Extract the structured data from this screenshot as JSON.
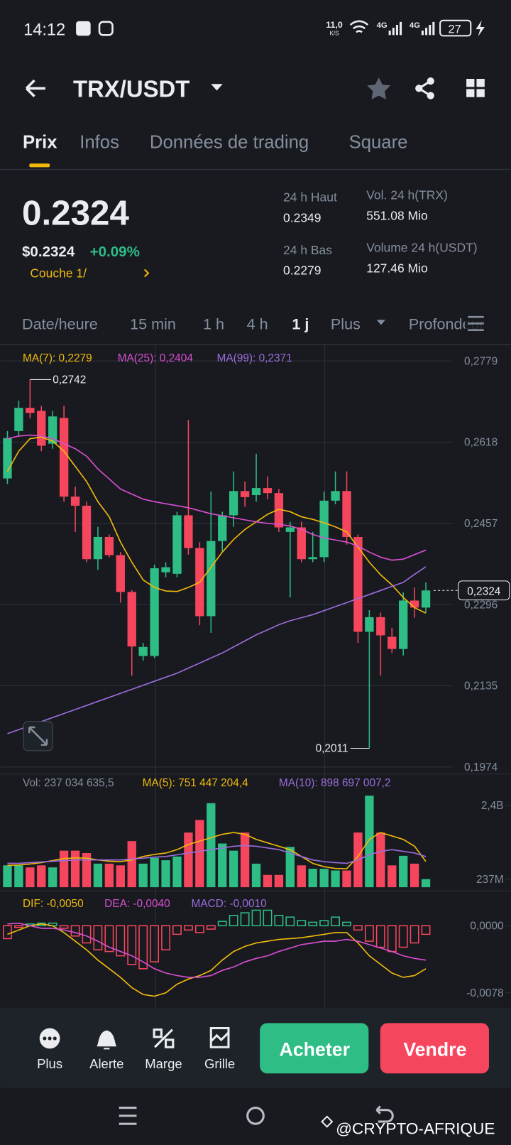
{
  "status_bar": {
    "time": "14:12",
    "speed": "11,0",
    "speed_unit": "K/S",
    "network_1": "4G",
    "network_2": "4G",
    "battery": "27"
  },
  "header": {
    "pair": "TRX/USDT"
  },
  "tabs": [
    "Prix",
    "Infos",
    "Données de trading",
    "Square"
  ],
  "price": {
    "last": "0.2324",
    "usd": "$0.2324",
    "change": "+0.09%",
    "layer": "Couche 1/"
  },
  "stats": [
    {
      "label": "24 h Haut",
      "value": "0.2349"
    },
    {
      "label": "24 h Bas",
      "value": "0.2279"
    },
    {
      "label": "Vol. 24 h(TRX)",
      "value": "551.08 Mio"
    },
    {
      "label": "Volume 24 h(USDT)",
      "value": "127.46 Mio"
    }
  ],
  "intervals": [
    "Date/heure",
    "15 min",
    "1 h",
    "4 h",
    "1 j",
    "Plus",
    "Profondeur"
  ],
  "chart_data": [
    {
      "type": "candlestick",
      "ylim": [
        0.196,
        0.2791
      ],
      "yticks": [
        {
          "value": 0.2779,
          "label": "0,2779"
        },
        {
          "value": 0.2618,
          "label": "0,2618"
        },
        {
          "value": 0.2457,
          "label": "0,2457"
        },
        {
          "value": 0.2296,
          "label": "0,2296"
        },
        {
          "value": 0.2135,
          "label": "0,2135"
        },
        {
          "value": 0.1974,
          "label": "0,1974"
        }
      ],
      "grid": true,
      "up_color": "#2ebd85",
      "down_color": "#f6465d",
      "candles": {
        "open": [
          0.2546,
          0.264,
          0.2686,
          0.268,
          0.2615,
          0.2666,
          0.251,
          0.2492,
          0.2386,
          0.243,
          0.2394,
          0.2321,
          0.2194,
          0.2194,
          0.236,
          0.2357,
          0.2473,
          0.2408,
          0.2273,
          0.2422,
          0.2473,
          0.2521,
          0.2513,
          0.2527,
          0.2517,
          0.244,
          0.2449,
          0.2386,
          0.239,
          0.2502,
          0.2521,
          0.243,
          0.2242,
          0.2271,
          0.2232,
          0.2208,
          0.2304,
          0.229
        ],
        "high": [
          0.264,
          0.27,
          0.2742,
          0.269,
          0.268,
          0.269,
          0.253,
          0.25,
          0.245,
          0.2435,
          0.24,
          0.2325,
          0.222,
          0.2375,
          0.238,
          0.248,
          0.2662,
          0.242,
          0.252,
          0.248,
          0.256,
          0.254,
          0.2595,
          0.255,
          0.2525,
          0.246,
          0.246,
          0.244,
          0.252,
          0.256,
          0.256,
          0.2435,
          0.2285,
          0.228,
          0.225,
          0.232,
          0.233,
          0.234
        ],
        "low": [
          0.2535,
          0.263,
          0.2665,
          0.26,
          0.2605,
          0.25,
          0.244,
          0.238,
          0.2365,
          0.239,
          0.23,
          0.2155,
          0.2185,
          0.219,
          0.235,
          0.235,
          0.2395,
          0.2255,
          0.224,
          0.24,
          0.245,
          0.249,
          0.25,
          0.2505,
          0.244,
          0.231,
          0.238,
          0.238,
          0.238,
          0.2495,
          0.2415,
          0.222,
          0.2011,
          0.2155,
          0.22,
          0.2195,
          0.227,
          0.228
        ],
        "close": [
          0.2626,
          0.2686,
          0.2676,
          0.2611,
          0.2669,
          0.251,
          0.2492,
          0.2386,
          0.243,
          0.2394,
          0.2321,
          0.2213,
          0.2212,
          0.2368,
          0.237,
          0.2473,
          0.2408,
          0.2273,
          0.2422,
          0.2473,
          0.2521,
          0.2509,
          0.2527,
          0.2517,
          0.2449,
          0.2449,
          0.2386,
          0.239,
          0.2502,
          0.2521,
          0.243,
          0.2242,
          0.2271,
          0.2235,
          0.2208,
          0.2304,
          0.229,
          0.2324
        ]
      },
      "series": [
        {
          "name": "MA(7): 0,2279",
          "color": "#f0b90b",
          "values": [
            0.256,
            0.26,
            0.2625,
            0.2628,
            0.262,
            0.26,
            0.257,
            0.254,
            0.25,
            0.247,
            0.242,
            0.238,
            0.2345,
            0.233,
            0.2323,
            0.2322,
            0.233,
            0.234,
            0.237,
            0.24,
            0.2425,
            0.2445,
            0.246,
            0.2475,
            0.2485,
            0.248,
            0.247,
            0.2465,
            0.2458,
            0.245,
            0.244,
            0.241,
            0.238,
            0.2355,
            0.2335,
            0.231,
            0.229,
            0.2279
          ]
        },
        {
          "name": "MA(25): 0,2404",
          "color": "#d84fd0",
          "values": [
            0.2625,
            0.263,
            0.2632,
            0.263,
            0.2625,
            0.2615,
            0.2605,
            0.259,
            0.2565,
            0.2545,
            0.2525,
            0.2515,
            0.2505,
            0.25,
            0.2496,
            0.2492,
            0.2488,
            0.2482,
            0.2476,
            0.2472,
            0.2468,
            0.2464,
            0.246,
            0.2457,
            0.2455,
            0.2452,
            0.2445,
            0.2435,
            0.2428,
            0.2424,
            0.242,
            0.2412,
            0.24,
            0.239,
            0.2384,
            0.2386,
            0.2395,
            0.2404
          ]
        },
        {
          "name": "MA(99): 0,2371",
          "color": "#9b6ddb",
          "values": [
            0.204,
            0.2048,
            0.2056,
            0.2064,
            0.2072,
            0.208,
            0.2088,
            0.2096,
            0.2104,
            0.2112,
            0.212,
            0.2128,
            0.2136,
            0.2144,
            0.2152,
            0.216,
            0.217,
            0.218,
            0.219,
            0.22,
            0.2212,
            0.2224,
            0.2236,
            0.2246,
            0.2256,
            0.2264,
            0.227,
            0.2276,
            0.2284,
            0.2292,
            0.23,
            0.2308,
            0.2316,
            0.2324,
            0.2332,
            0.234,
            0.2356,
            0.2371
          ]
        }
      ],
      "high_mark": {
        "value": 0.2742,
        "label": "0,2742"
      },
      "low_mark": {
        "value": 0.2011,
        "label": "0,2011"
      },
      "current": {
        "value": 0.2324,
        "label": "0,2324"
      }
    },
    {
      "type": "bar",
      "ylim": [
        0,
        2800000000
      ],
      "yticks": [
        {
          "value": 2400000000,
          "label": "2,4B"
        },
        {
          "value": 237000000,
          "label": "237M"
        }
      ],
      "legend": "Vol: 237 034 635,5",
      "values": [
        640000000,
        640000000,
        580000000,
        640000000,
        580000000,
        1070000000,
        1070000000,
        1000000000,
        690000000,
        690000000,
        640000000,
        1350000000,
        690000000,
        860000000,
        790000000,
        900000000,
        1600000000,
        1970000000,
        2460000000,
        1280000000,
        1070000000,
        1600000000,
        690000000,
        360000000,
        360000000,
        1180000000,
        640000000,
        540000000,
        540000000,
        490000000,
        490000000,
        1600000000,
        2680000000,
        1600000000,
        640000000,
        920000000,
        690000000,
        237034635.5
      ],
      "series": [
        {
          "name": "MA(5): 751 447 204,4",
          "color": "#f0b90b",
          "values": [
            640000000,
            650000000,
            680000000,
            720000000,
            780000000,
            840000000,
            860000000,
            850000000,
            800000000,
            760000000,
            750000000,
            800000000,
            900000000,
            960000000,
            1000000000,
            1100000000,
            1250000000,
            1350000000,
            1450000000,
            1550000000,
            1600000000,
            1550000000,
            1400000000,
            1300000000,
            1200000000,
            1100000000,
            900000000,
            700000000,
            600000000,
            550000000,
            540000000,
            900000000,
            1400000000,
            1600000000,
            1500000000,
            1400000000,
            1200000000,
            751447204.4
          ]
        },
        {
          "name": "MA(10): 898 697 007,2",
          "color": "#9b6ddb",
          "values": [
            700000000,
            700000000,
            720000000,
            740000000,
            760000000,
            780000000,
            800000000,
            800000000,
            800000000,
            800000000,
            800000000,
            820000000,
            850000000,
            880000000,
            900000000,
            950000000,
            1000000000,
            1050000000,
            1100000000,
            1150000000,
            1200000000,
            1220000000,
            1200000000,
            1150000000,
            1100000000,
            1000000000,
            900000000,
            800000000,
            750000000,
            720000000,
            700000000,
            800000000,
            950000000,
            1050000000,
            1100000000,
            1050000000,
            1000000000,
            898697007.2
          ]
        }
      ]
    },
    {
      "type": "bar",
      "ylim": [
        -0.0086,
        0.0032
      ],
      "yticks": [
        {
          "value": 0,
          "label": "0,0000"
        },
        {
          "value": -0.0078,
          "label": "-0,0078"
        }
      ],
      "values": [
        -0.0015,
        -0.0002,
        0.0002,
        0.0003,
        0.0003,
        -0.0003,
        -0.0012,
        -0.002,
        -0.0028,
        -0.003,
        -0.0035,
        -0.0045,
        -0.005,
        -0.0042,
        -0.0028,
        -0.001,
        -0.0005,
        -0.0008,
        -0.0004,
        0.0005,
        0.0012,
        0.0015,
        0.0018,
        0.0018,
        0.0012,
        0.001,
        0.0006,
        0.0004,
        0.0006,
        0.001,
        0.0004,
        -0.0005,
        -0.0018,
        -0.0025,
        -0.003,
        -0.0025,
        -0.002,
        -0.001
      ],
      "legend": "MACD: -0,0010",
      "series": [
        {
          "name": "DIF: -0,0050",
          "color": "#f0b90b",
          "values": [
            -0.001,
            -0.0005,
            0,
            0.0002,
            0,
            -0.0008,
            -0.0018,
            -0.0028,
            -0.004,
            -0.005,
            -0.006,
            -0.0072,
            -0.008,
            -0.0082,
            -0.0078,
            -0.0068,
            -0.0062,
            -0.0058,
            -0.0052,
            -0.004,
            -0.003,
            -0.0024,
            -0.002,
            -0.0018,
            -0.0016,
            -0.0015,
            -0.0014,
            -0.0012,
            -0.001,
            -0.0008,
            -0.0008,
            -0.002,
            -0.0035,
            -0.0045,
            -0.0055,
            -0.006,
            -0.0058,
            -0.005
          ]
        },
        {
          "name": "DEA: -0,0040",
          "color": "#d84fd0",
          "values": [
            0.0002,
            0.0003,
            0,
            -0.0003,
            -0.0003,
            -0.0005,
            -0.0008,
            -0.0012,
            -0.0018,
            -0.0025,
            -0.003,
            -0.0035,
            -0.0042,
            -0.005,
            -0.0055,
            -0.0058,
            -0.006,
            -0.006,
            -0.0058,
            -0.0052,
            -0.0048,
            -0.0042,
            -0.0038,
            -0.0035,
            -0.003,
            -0.0026,
            -0.0022,
            -0.002,
            -0.0018,
            -0.0018,
            -0.0016,
            -0.0018,
            -0.0022,
            -0.0026,
            -0.003,
            -0.0035,
            -0.0038,
            -0.004
          ]
        }
      ]
    }
  ],
  "toolbar": [
    "Plus",
    "Alerte",
    "Marge",
    "Grille"
  ],
  "buttons": {
    "buy": "Acheter",
    "sell": "Vendre"
  },
  "watermark": "@CRYPTO-AFRIQUE"
}
